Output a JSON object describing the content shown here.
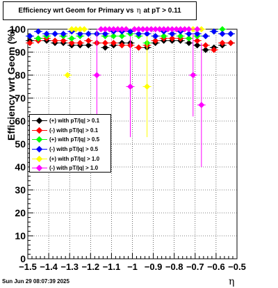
{
  "title": {
    "prefix": "Efficiency wrt Geom for Primary vs",
    "eta": "η",
    "suffix": "at pT > 0.11"
  },
  "timestamp": "Sun Jun 29 08:07:39 2025",
  "chart_data": {
    "type": "scatter",
    "xlabel": "η",
    "ylabel": "Efficiency wrt Geom (%)",
    "xlim": [
      -1.5,
      -0.5
    ],
    "ylim": [
      0,
      100
    ],
    "x_ticks": [
      "−1.5",
      "−1.4",
      "−1.3",
      "−1.2",
      "−1.1",
      "−1",
      "−0.9",
      "−0.8",
      "−0.7",
      "−0.6",
      "−0.5"
    ],
    "y_ticks": [
      "0",
      "10",
      "20",
      "30",
      "40",
      "50",
      "60",
      "70",
      "80",
      "90",
      "100"
    ],
    "grid": true,
    "legend_position": "left-middle",
    "series": [
      {
        "name": "(+) with pT/|q| > 0.1",
        "color": "#000000",
        "x": [
          -1.49,
          -1.45,
          -1.41,
          -1.37,
          -1.33,
          -1.29,
          -1.25,
          -1.21,
          -1.17,
          -1.13,
          -1.09,
          -1.05,
          -1.01,
          -0.97,
          -0.93,
          -0.89,
          -0.85,
          -0.81,
          -0.77,
          -0.73,
          -0.69,
          -0.65,
          -0.61,
          -0.57,
          -0.53
        ],
        "y": [
          95,
          96,
          95,
          94,
          94,
          93,
          93,
          93,
          94,
          92,
          93,
          94,
          94,
          92,
          92,
          94,
          95,
          95,
          95,
          94,
          93,
          91,
          92,
          93,
          94
        ]
      },
      {
        "name": "(-) with pT/|q| > 0.1",
        "color": "#ff0000",
        "x": [
          -1.49,
          -1.45,
          -1.41,
          -1.37,
          -1.33,
          -1.29,
          -1.25,
          -1.21,
          -1.17,
          -1.13,
          -1.09,
          -1.05,
          -1.01,
          -0.97,
          -0.93,
          -0.89,
          -0.85,
          -0.81,
          -0.77,
          -0.73,
          -0.69,
          -0.65,
          -0.61,
          -0.57,
          -0.53
        ],
        "y": [
          94,
          95,
          96,
          95,
          95,
          94,
          94,
          95,
          94,
          94,
          94,
          93,
          93,
          92,
          93,
          95,
          96,
          96,
          96,
          96,
          95,
          93,
          91,
          94,
          94
        ]
      },
      {
        "name": "(+) with pT/|q| > 0.5",
        "color": "#00ff00",
        "x": [
          -1.49,
          -1.45,
          -1.41,
          -1.37,
          -1.33,
          -1.29,
          -1.25,
          -1.21,
          -1.17,
          -1.13,
          -1.09,
          -1.05,
          -1.01,
          -0.97,
          -0.93,
          -0.89,
          -0.85,
          -0.81,
          -0.77,
          -0.73,
          -0.69,
          -0.65,
          -0.61,
          -0.57,
          -0.53
        ],
        "y": [
          97,
          96,
          97,
          98,
          97,
          96,
          97,
          98,
          98,
          97,
          97,
          97,
          98,
          97,
          94,
          97,
          97,
          98,
          97,
          96,
          97,
          97,
          99,
          100,
          98
        ]
      },
      {
        "name": "(-) with pT/|q| > 0.5",
        "color": "#0000ff",
        "x": [
          -1.49,
          -1.45,
          -1.41,
          -1.37,
          -1.33,
          -1.29,
          -1.25,
          -1.21,
          -1.17,
          -1.13,
          -1.09,
          -1.05,
          -1.01,
          -0.97,
          -0.93,
          -0.89,
          -0.85,
          -0.81,
          -0.77,
          -0.73,
          -0.69,
          -0.65,
          -0.61,
          -0.57,
          -0.53
        ],
        "y": [
          97,
          99,
          98,
          98,
          98,
          99,
          98,
          98,
          98,
          98,
          99,
          99,
          99,
          98,
          98,
          97,
          99,
          98,
          99,
          98,
          98,
          97,
          99,
          98,
          98
        ]
      },
      {
        "name": "(+) with pT/|q| > 1.0",
        "color": "#ffff00",
        "x": [
          -1.31,
          -1.29,
          -1.27,
          -1.25,
          -1.23,
          -1.07,
          -1.03,
          -0.99,
          -0.95,
          -0.93,
          -0.91,
          -0.87,
          -0.83,
          -0.79,
          -0.75,
          -0.71,
          -0.67
        ],
        "y": [
          80,
          100,
          100,
          100,
          100,
          100,
          100,
          100,
          100,
          75,
          100,
          100,
          100,
          100,
          100,
          100,
          100
        ],
        "yerr": [
          0,
          0,
          0,
          0,
          0,
          0,
          0,
          0,
          0,
          22,
          0,
          0,
          0,
          0,
          0,
          0,
          0
        ]
      },
      {
        "name": "(-) with pT/|q| > 1.0",
        "color": "#ff00ff",
        "x": [
          -1.17,
          -1.15,
          -1.13,
          -1.11,
          -1.09,
          -1.07,
          -1.05,
          -1.03,
          -1.01,
          -0.99,
          -0.97,
          -0.95,
          -0.93,
          -0.91,
          -0.89,
          -0.87,
          -0.85,
          -0.83,
          -0.81,
          -0.79,
          -0.77,
          -0.75,
          -0.73,
          -0.71,
          -0.69,
          -0.67
        ],
        "y": [
          80,
          100,
          100,
          100,
          100,
          100,
          100,
          100,
          75,
          100,
          100,
          100,
          100,
          100,
          100,
          100,
          100,
          100,
          100,
          100,
          100,
          100,
          100,
          80,
          100,
          67
        ],
        "yerr": [
          20,
          0,
          0,
          0,
          0,
          0,
          0,
          0,
          22,
          0,
          0,
          0,
          0,
          0,
          0,
          0,
          0,
          0,
          0,
          0,
          0,
          0,
          0,
          18,
          0,
          27
        ]
      }
    ]
  }
}
